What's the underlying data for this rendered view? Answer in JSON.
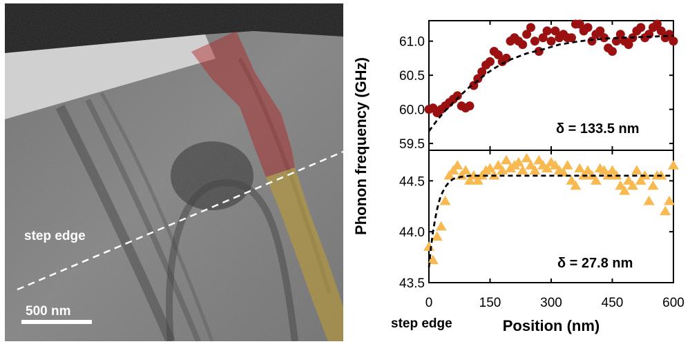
{
  "figure": {
    "micrograph": {
      "step_label": "step edge",
      "scalebar_label": "500 nm",
      "colors": {
        "red_region": "#b22222",
        "yellow_region": "#c9a227",
        "dashed_line": "#ffffff"
      }
    },
    "shared_y_label": "Phonon frequency (GHz)",
    "step_edge_label": "step edge"
  },
  "chart_data": [
    {
      "type": "scatter",
      "panel": "top",
      "x": [
        0,
        10,
        20,
        30,
        40,
        50,
        60,
        70,
        80,
        90,
        100,
        110,
        120,
        130,
        140,
        150,
        160,
        170,
        180,
        190,
        200,
        210,
        220,
        230,
        240,
        250,
        260,
        270,
        280,
        290,
        300,
        310,
        320,
        330,
        340,
        350,
        360,
        370,
        380,
        390,
        400,
        410,
        420,
        430,
        440,
        450,
        460,
        470,
        480,
        490,
        500,
        510,
        520,
        530,
        540,
        550,
        560,
        570,
        580,
        590,
        600
      ],
      "series": [
        {
          "marker": "circle",
          "color": "#9b1111",
          "values": [
            60.0,
            60.02,
            59.95,
            60.0,
            60.05,
            60.1,
            60.15,
            60.2,
            60.05,
            60.02,
            60.05,
            60.35,
            60.45,
            60.55,
            60.65,
            60.7,
            60.85,
            60.8,
            60.7,
            60.75,
            61.0,
            61.05,
            61.0,
            60.95,
            61.1,
            61.2,
            61.0,
            60.85,
            61.05,
            61.15,
            61.0,
            61.15,
            61.05,
            61.1,
            61.05,
            61.05,
            61.25,
            61.25,
            61.15,
            61.2,
            61.0,
            61.1,
            61.15,
            61.05,
            60.9,
            60.85,
            61.0,
            61.1,
            61.0,
            60.95,
            61.05,
            61.15,
            61.2,
            61.05,
            61.1,
            61.2,
            61.25,
            61.15,
            61.05,
            61.1,
            61.0
          ]
        }
      ],
      "fit": {
        "style": "dashed",
        "x": [
          0,
          10,
          20,
          40,
          60,
          80,
          100,
          120,
          140,
          160,
          180,
          200,
          240,
          280,
          320,
          360,
          400,
          440,
          480,
          520,
          560,
          600
        ],
        "values": [
          59.68,
          59.76,
          59.84,
          59.98,
          60.1,
          60.22,
          60.33,
          60.42,
          60.52,
          60.6,
          60.67,
          60.73,
          60.82,
          60.88,
          60.95,
          60.99,
          61.02,
          61.04,
          61.05,
          61.06,
          61.07,
          61.08
        ]
      },
      "annotation": "δ = 133.5 nm",
      "ylim": [
        59.4,
        61.3
      ],
      "y_ticks": [
        "59.5",
        "60.0",
        "60.5",
        "61.0"
      ],
      "y_tick_values": [
        59.5,
        60.0,
        60.5,
        61.0
      ]
    },
    {
      "type": "scatter",
      "panel": "bottom",
      "x": [
        0,
        10,
        20,
        30,
        40,
        50,
        60,
        70,
        80,
        90,
        100,
        110,
        120,
        130,
        140,
        150,
        160,
        170,
        180,
        190,
        200,
        210,
        220,
        230,
        240,
        250,
        260,
        270,
        280,
        290,
        300,
        310,
        320,
        330,
        340,
        350,
        360,
        370,
        380,
        390,
        400,
        410,
        420,
        430,
        440,
        450,
        460,
        470,
        480,
        490,
        500,
        510,
        520,
        530,
        540,
        550,
        560,
        570,
        580,
        590,
        600
      ],
      "series": [
        {
          "marker": "triangle",
          "color": "#f7b950",
          "values": [
            43.85,
            43.72,
            43.95,
            44.05,
            44.3,
            44.55,
            44.6,
            44.65,
            44.55,
            44.6,
            44.5,
            44.55,
            44.5,
            44.55,
            44.6,
            44.62,
            44.55,
            44.65,
            44.6,
            44.7,
            44.62,
            44.65,
            44.68,
            44.6,
            44.72,
            44.65,
            44.6,
            44.7,
            44.65,
            44.62,
            44.68,
            44.65,
            44.6,
            44.58,
            44.65,
            44.5,
            44.45,
            44.62,
            44.55,
            44.6,
            44.55,
            44.5,
            44.62,
            44.6,
            44.55,
            44.6,
            44.55,
            44.45,
            44.4,
            44.5,
            44.45,
            44.6,
            44.5,
            44.55,
            44.3,
            44.45,
            44.55,
            44.55,
            44.2,
            44.3,
            44.65
          ]
        }
      ],
      "fit": {
        "style": "dashed",
        "x": [
          0,
          5,
          10,
          15,
          20,
          25,
          30,
          40,
          50,
          60,
          70,
          80,
          100,
          150,
          200,
          300,
          400,
          500,
          600
        ],
        "values": [
          43.65,
          43.85,
          44.0,
          44.12,
          44.22,
          44.3,
          44.36,
          44.44,
          44.49,
          44.52,
          44.53,
          44.54,
          44.55,
          44.55,
          44.55,
          44.55,
          44.55,
          44.55,
          44.55
        ]
      },
      "annotation": "δ = 27.8 nm",
      "ylim": [
        43.5,
        44.8
      ],
      "y_ticks": [
        "43.5",
        "44.0",
        "44.5"
      ],
      "y_tick_values": [
        43.5,
        44.0,
        44.5
      ],
      "xlabel": "Position (nm)",
      "xlim": [
        0,
        600
      ],
      "x_ticks": [
        "0",
        "150",
        "300",
        "450",
        "600"
      ],
      "x_tick_values": [
        0,
        150,
        300,
        450,
        600
      ]
    }
  ]
}
